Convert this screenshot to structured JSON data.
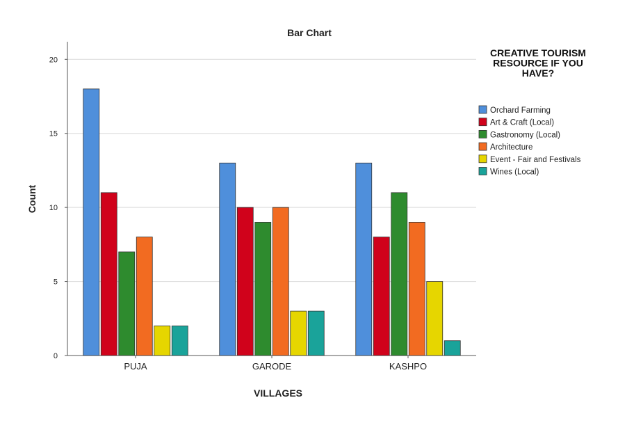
{
  "chart_data": {
    "type": "bar",
    "title": "Bar Chart",
    "xlabel": "VILLAGES",
    "ylabel": "Count",
    "ylim": [
      0,
      21
    ],
    "yticks": [
      0,
      5,
      10,
      15,
      20
    ],
    "grid": true,
    "legend_placement": "right",
    "legend_title": "CREATIVE TOURISM RESOURCE IF YOU HAVE?",
    "categories": [
      "PUJA",
      "GARODE",
      "KASHPO"
    ],
    "series": [
      {
        "name": "Orchard Farming",
        "color": "#4f8fdb",
        "values": [
          18,
          13,
          13
        ]
      },
      {
        "name": "Art & Craft   (Local)",
        "color": "#d0021b",
        "values": [
          11,
          10,
          8
        ]
      },
      {
        "name": "Gastronomy (Local)",
        "color": "#2e8b2e",
        "values": [
          7,
          9,
          11
        ]
      },
      {
        "name": "Architecture",
        "color": "#f26b21",
        "values": [
          8,
          10,
          9
        ]
      },
      {
        "name": "Event - Fair and Festivals",
        "color": "#e6d600",
        "values": [
          2,
          3,
          5
        ]
      },
      {
        "name": "Wines (Local)",
        "color": "#1aa39a",
        "values": [
          2,
          3,
          1
        ]
      }
    ]
  }
}
